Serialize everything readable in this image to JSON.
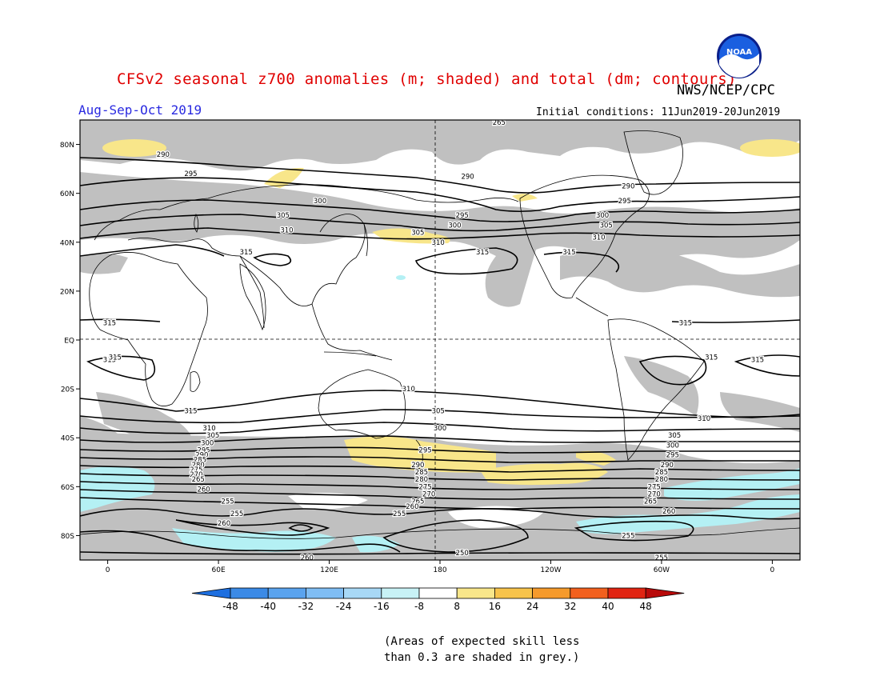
{
  "title": "CFSv2 seasonal z700 anomalies (m; shaded) and total (dm; contours)",
  "agency": "NWS/NCEP/CPC",
  "season": "Aug-Sep-Oct 2019",
  "initial_conditions": "Initial conditions: 11Jun2019-20Jun2019",
  "logo_text": "NOAA",
  "note_lines": [
    "(Areas of expected skill less",
    "than 0.3 are shaded in grey.)"
  ],
  "colors": {
    "skill_grey": "#c0c0c0",
    "positive_low": "#f8e68a",
    "negative_low": "#b4f0f4",
    "title": "#e00000",
    "season": "#2a2ae0"
  },
  "map": {
    "lat_labels": [
      "80N",
      "60N",
      "40N",
      "20N",
      "EQ",
      "20S",
      "40S",
      "60S",
      "80S"
    ],
    "lat_values": [
      80,
      60,
      40,
      20,
      0,
      -20,
      -40,
      -60,
      -80
    ],
    "lon_labels": [
      "0",
      "60E",
      "120E",
      "180",
      "120W",
      "60W",
      "0"
    ],
    "lon_values": [
      0,
      60,
      120,
      180,
      240,
      300,
      360
    ],
    "lon_range": [
      -15,
      375
    ],
    "lat_range": [
      -90,
      90
    ],
    "contour_labels": [
      {
        "text": "290",
        "lon": 30,
        "lat": 76
      },
      {
        "text": "295",
        "lon": 45,
        "lat": 68
      },
      {
        "text": "300",
        "lon": 115,
        "lat": 57
      },
      {
        "text": "305",
        "lon": 95,
        "lat": 51
      },
      {
        "text": "310",
        "lon": 97,
        "lat": 45
      },
      {
        "text": "315",
        "lon": 75,
        "lat": 36
      },
      {
        "text": "290",
        "lon": 195,
        "lat": 67
      },
      {
        "text": "295",
        "lon": 192,
        "lat": 51
      },
      {
        "text": "300",
        "lon": 188,
        "lat": 47
      },
      {
        "text": "305",
        "lon": 168,
        "lat": 44
      },
      {
        "text": "310",
        "lon": 179,
        "lat": 40
      },
      {
        "text": "315",
        "lon": 203,
        "lat": 36
      },
      {
        "text": "315",
        "lon": 250,
        "lat": 36
      },
      {
        "text": "290",
        "lon": 282,
        "lat": 63
      },
      {
        "text": "295",
        "lon": 280,
        "lat": 57
      },
      {
        "text": "300",
        "lon": 268,
        "lat": 51
      },
      {
        "text": "305",
        "lon": 270,
        "lat": 47
      },
      {
        "text": "310",
        "lon": 266,
        "lat": 42
      },
      {
        "text": "265",
        "lon": 212,
        "lat": 89
      },
      {
        "text": "315",
        "lon": 1,
        "lat": 7
      },
      {
        "text": "315",
        "lon": 1,
        "lat": -8
      },
      {
        "text": "315",
        "lon": 313,
        "lat": 7
      },
      {
        "text": "315",
        "lon": 327,
        "lat": -7
      },
      {
        "text": "315",
        "lon": 4,
        "lat": -7
      },
      {
        "text": "315",
        "lon": 352,
        "lat": -8
      },
      {
        "text": "310",
        "lon": 163,
        "lat": -20
      },
      {
        "text": "305",
        "lon": 179,
        "lat": -29
      },
      {
        "text": "300",
        "lon": 180,
        "lat": -36
      },
      {
        "text": "295",
        "lon": 172,
        "lat": -45
      },
      {
        "text": "290",
        "lon": 168,
        "lat": -51
      },
      {
        "text": "285",
        "lon": 170,
        "lat": -54
      },
      {
        "text": "280",
        "lon": 170,
        "lat": -57
      },
      {
        "text": "275",
        "lon": 172,
        "lat": -60
      },
      {
        "text": "270",
        "lon": 174,
        "lat": -63
      },
      {
        "text": "265",
        "lon": 168,
        "lat": -66
      },
      {
        "text": "260",
        "lon": 165,
        "lat": -68
      },
      {
        "text": "255",
        "lon": 158,
        "lat": -71
      },
      {
        "text": "250",
        "lon": 192,
        "lat": -87
      },
      {
        "text": "255",
        "lon": 282,
        "lat": -80
      },
      {
        "text": "255",
        "lon": 300,
        "lat": -89
      },
      {
        "text": "260",
        "lon": 108,
        "lat": -89
      },
      {
        "text": "260",
        "lon": 63,
        "lat": -75
      },
      {
        "text": "255",
        "lon": 70,
        "lat": -71
      },
      {
        "text": "255",
        "lon": 65,
        "lat": -66
      },
      {
        "text": "260",
        "lon": 52,
        "lat": -61
      },
      {
        "text": "315",
        "lon": 45,
        "lat": -29
      },
      {
        "text": "310",
        "lon": 55,
        "lat": -36
      },
      {
        "text": "305",
        "lon": 57,
        "lat": -39
      },
      {
        "text": "300",
        "lon": 54,
        "lat": -42
      },
      {
        "text": "295",
        "lon": 52,
        "lat": -45
      },
      {
        "text": "290",
        "lon": 51,
        "lat": -47
      },
      {
        "text": "285",
        "lon": 50,
        "lat": -49
      },
      {
        "text": "280",
        "lon": 49,
        "lat": -51
      },
      {
        "text": "275",
        "lon": 48,
        "lat": -53
      },
      {
        "text": "270",
        "lon": 48,
        "lat": -55
      },
      {
        "text": "265",
        "lon": 49,
        "lat": -57
      },
      {
        "text": "310",
        "lon": 323,
        "lat": -32
      },
      {
        "text": "305",
        "lon": 307,
        "lat": -39
      },
      {
        "text": "300",
        "lon": 306,
        "lat": -43
      },
      {
        "text": "295",
        "lon": 306,
        "lat": -47
      },
      {
        "text": "290",
        "lon": 303,
        "lat": -51
      },
      {
        "text": "285",
        "lon": 300,
        "lat": -54
      },
      {
        "text": "280",
        "lon": 300,
        "lat": -57
      },
      {
        "text": "275",
        "lon": 296,
        "lat": -60
      },
      {
        "text": "270",
        "lon": 296,
        "lat": -63
      },
      {
        "text": "265",
        "lon": 294,
        "lat": -66
      },
      {
        "text": "260",
        "lon": 304,
        "lat": -70
      }
    ]
  },
  "colorbar": {
    "ticks": [
      "-48",
      "-40",
      "-32",
      "-24",
      "-16",
      "-8",
      "8",
      "16",
      "24",
      "32",
      "40",
      "48"
    ],
    "colors": [
      "#1d6fe0",
      "#3b8ae6",
      "#5aa3ee",
      "#7fbdf4",
      "#a8d8f6",
      "#c8f2f6",
      "#ffffff",
      "#f8e68a",
      "#f7c34b",
      "#f59a2c",
      "#f2601e",
      "#e02412",
      "#b80a0a"
    ]
  }
}
